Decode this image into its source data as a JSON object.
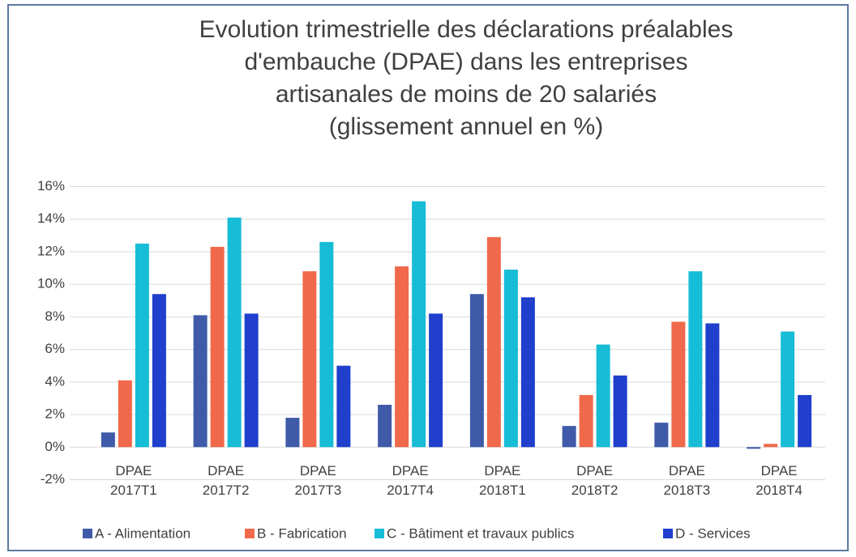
{
  "chart_data": {
    "type": "bar",
    "title": [
      "Evolution trimestrielle des déclarations préalables",
      "d'embauche (DPAE) dans les entreprises",
      "artisanales de moins de 20 salariés",
      "(glissement annuel en %)"
    ],
    "categories": [
      [
        "DPAE",
        "2017T1"
      ],
      [
        "DPAE",
        "2017T2"
      ],
      [
        "DPAE",
        "2017T3"
      ],
      [
        "DPAE",
        "2017T4"
      ],
      [
        "DPAE",
        "2018T1"
      ],
      [
        "DPAE",
        "2018T2"
      ],
      [
        "DPAE",
        "2018T3"
      ],
      [
        "DPAE",
        "2018T4"
      ]
    ],
    "series": [
      {
        "name": "A - Alimentation",
        "color": "#3f5aa8",
        "values": [
          0.9,
          8.1,
          1.8,
          2.6,
          9.4,
          1.3,
          1.5,
          -0.1
        ]
      },
      {
        "name": "B - Fabrication",
        "color": "#f0694a",
        "values": [
          4.1,
          12.3,
          10.8,
          11.1,
          12.9,
          3.2,
          7.7,
          0.2
        ]
      },
      {
        "name": "C - Bâtiment et travaux publics",
        "color": "#17bcd6",
        "values": [
          12.5,
          14.1,
          12.6,
          15.1,
          10.9,
          6.3,
          10.8,
          7.1
        ]
      },
      {
        "name": "D - Services",
        "color": "#1f3fcc",
        "values": [
          9.4,
          8.2,
          5.0,
          8.2,
          9.2,
          4.4,
          7.6,
          3.2
        ]
      }
    ],
    "ylim": [
      -2,
      16
    ],
    "yticks": [
      {
        "value": -2,
        "label": "-2%"
      },
      {
        "value": 0,
        "label": "0%"
      },
      {
        "value": 2,
        "label": "2%"
      },
      {
        "value": 4,
        "label": "4%"
      },
      {
        "value": 6,
        "label": "6%"
      },
      {
        "value": 8,
        "label": "8%"
      },
      {
        "value": 10,
        "label": "10%"
      },
      {
        "value": 12,
        "label": "12%"
      },
      {
        "value": 14,
        "label": "14%"
      },
      {
        "value": 16,
        "label": "16%"
      }
    ],
    "grid": true,
    "legend": "bottom"
  }
}
